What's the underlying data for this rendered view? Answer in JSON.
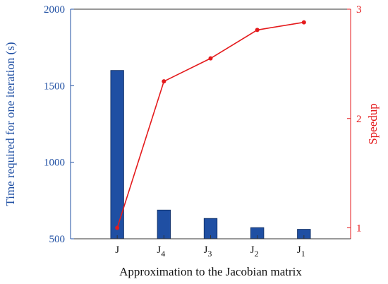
{
  "chart_data": {
    "type": "bar",
    "categories": [
      {
        "base": "J",
        "sub": ""
      },
      {
        "base": "J",
        "sub": "4"
      },
      {
        "base": "J",
        "sub": "3"
      },
      {
        "base": "J",
        "sub": "2"
      },
      {
        "base": "J",
        "sub": "1"
      }
    ],
    "series": [
      {
        "type": "bar",
        "axis": "left",
        "values": [
          1600,
          688,
          633,
          573,
          562
        ],
        "color": "#1f4fa3"
      },
      {
        "type": "line",
        "axis": "right",
        "values": [
          1.0,
          2.34,
          2.55,
          2.81,
          2.88
        ],
        "color": "#e41a1c"
      }
    ],
    "xlabel": "Approximation to the Jacobian matrix",
    "ylabel_left": "Time required for one iteration (s)",
    "ylabel_right": "Speedup",
    "ylim_left": [
      500,
      2000
    ],
    "yticks_left": [
      "500",
      "1000",
      "1500",
      "2000"
    ],
    "ylim_right": [
      0.9,
      3.0
    ],
    "yticks_right": [
      "1",
      "2",
      "3"
    ],
    "grid": false,
    "left_axis_color": "#1f4fa3",
    "right_axis_color": "#e41a1c"
  }
}
